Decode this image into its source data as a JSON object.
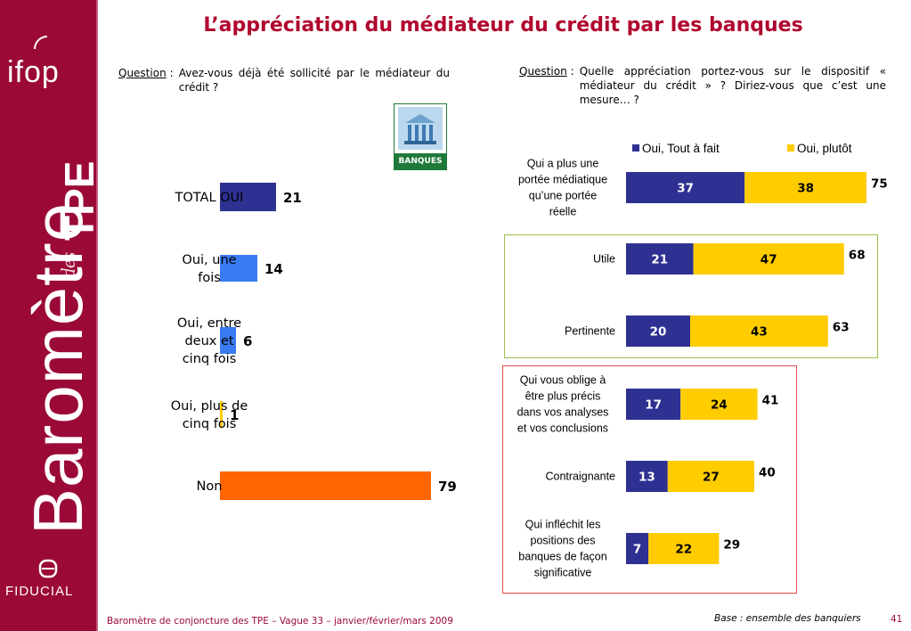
{
  "sidebar": {
    "ifop_logo": "ifop",
    "barometre": "Baromètre",
    "des": "des",
    "tpe": "TPE",
    "fiducial": "FIDUCIAL",
    "color": "#9b0a37"
  },
  "title": "L’appréciation du médiateur du crédit par les banques",
  "question_left": {
    "label": "Question",
    "colon": ":",
    "text": "Avez-vous déjà été sollicité par le médiateur du crédit ?"
  },
  "question_right": {
    "label": "Question",
    "colon": ":",
    "text": "Quelle appréciation portez-vous sur le dispositif « médiateur du crédit » ? Diriez-vous que c’est une mesure… ?"
  },
  "banques_logo": {
    "label": "BANQUES",
    "icon": "bank-building-icon"
  },
  "chart_data": [
    {
      "type": "bar",
      "orientation": "horizontal",
      "categories": [
        "TOTAL OUI",
        "Oui, une fois",
        "Oui, entre deux et cinq fois",
        "Oui, plus de cinq fois",
        "Non"
      ],
      "values": [
        21,
        14,
        6,
        1,
        79
      ],
      "colors": [
        "#2e3192",
        "#3a7bf2",
        "#3a7bf2",
        "#ffcc00",
        "#ff6600"
      ],
      "title": "",
      "xlim": [
        0,
        100
      ]
    },
    {
      "type": "bar",
      "orientation": "horizontal",
      "stacked": true,
      "categories": [
        "Qui a plus une portée médiatique qu’une portée réelle",
        "Utile",
        "Pertinente",
        "Qui vous oblige à être plus précis dans vos analyses et vos conclusions",
        "Contraignante",
        "Qui infléchit les positions des banques de façon significative"
      ],
      "series": [
        {
          "name": "Oui, Tout à fait",
          "values": [
            37,
            21,
            20,
            17,
            13,
            7
          ],
          "color": "#2e3192"
        },
        {
          "name": "Oui, plutôt",
          "values": [
            38,
            47,
            43,
            24,
            27,
            22
          ],
          "color": "#ffcc00"
        }
      ],
      "totals": [
        75,
        68,
        63,
        41,
        40,
        29
      ],
      "legend": "top",
      "xlim": [
        0,
        100
      ]
    }
  ],
  "footer": {
    "left": "Baromètre de conjoncture des TPE – Vague 33 – janvier/février/mars 2009",
    "base": "Base : ensemble des banquiers",
    "page": "41"
  }
}
